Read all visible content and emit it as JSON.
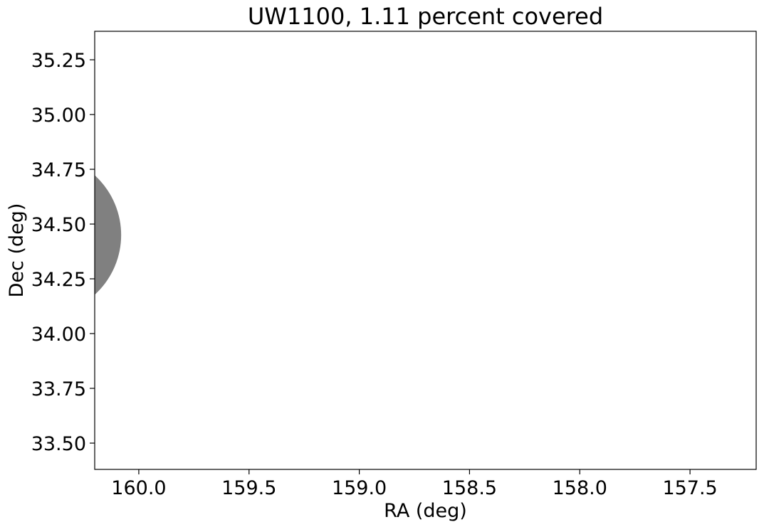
{
  "chart_data": {
    "type": "scatter",
    "title": "UW1100, 1.11 percent covered",
    "xlabel": "RA (deg)",
    "ylabel": "Dec (deg)",
    "xlim": [
      160.2,
      157.2
    ],
    "ylim": [
      33.38,
      35.38
    ],
    "x_inverted": true,
    "xticks": [
      160.0,
      159.5,
      159.0,
      158.5,
      158.0,
      157.5
    ],
    "xtick_labels": [
      "160.0",
      "159.5",
      "159.0",
      "158.5",
      "158.0",
      "157.5"
    ],
    "yticks": [
      33.5,
      33.75,
      34.0,
      34.25,
      34.5,
      34.75,
      35.0,
      35.25
    ],
    "ytick_labels": [
      "33.50",
      "33.75",
      "34.00",
      "34.25",
      "34.50",
      "34.75",
      "35.00",
      "35.25"
    ],
    "grid": false,
    "coverage_shape": {
      "type": "circle",
      "center_ra": 160.45,
      "center_dec": 34.45,
      "radius_deg": 0.37,
      "color": "#808080"
    }
  }
}
